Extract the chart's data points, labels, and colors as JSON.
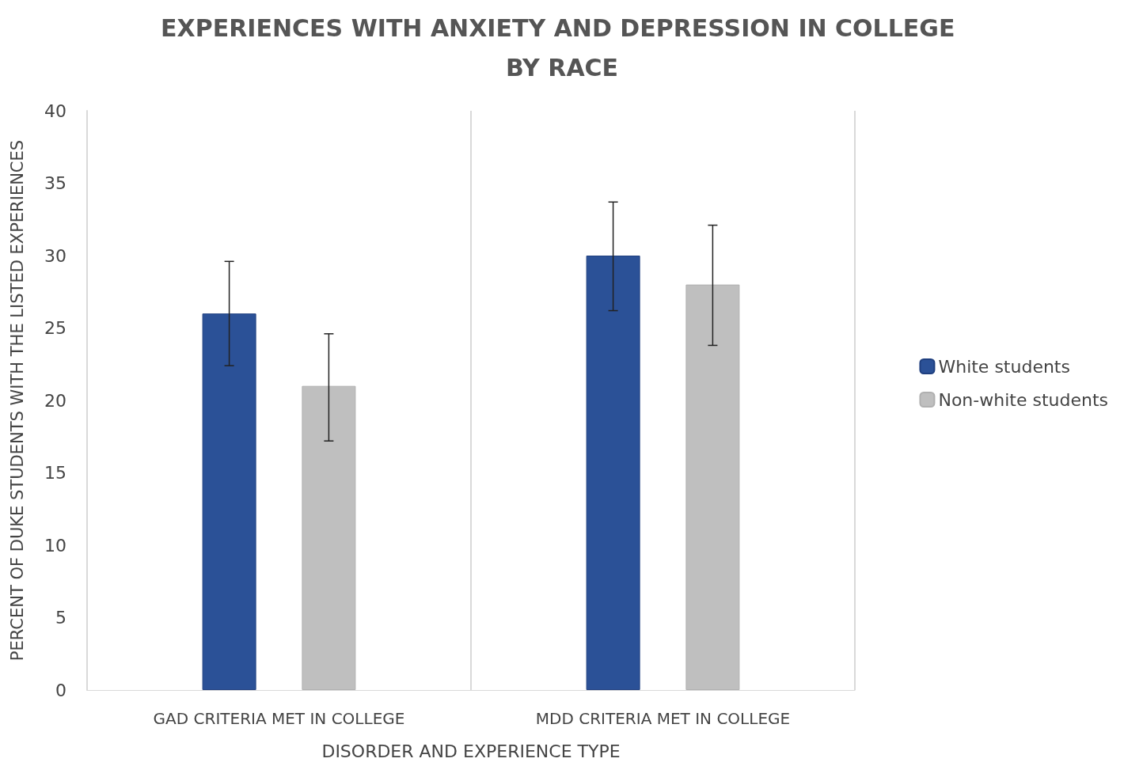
{
  "chart_data": {
    "type": "bar",
    "title": "EXPERIENCES WITH ANXIETY AND DEPRESSION IN COLLEGE BY RACE",
    "xlabel": "DISORDER AND EXPERIENCE TYPE",
    "ylabel": "PERCENT OF DUKE STUDENTS WITH THE LISTED EXPERIENCES",
    "categories": [
      "GAD CRITERIA MET IN COLLEGE",
      "MDD CRITERIA MET IN COLLEGE"
    ],
    "series": [
      {
        "name": "White students",
        "color": "#2b5197",
        "values": [
          26,
          30
        ],
        "errors": [
          [
            22.4,
            29.6
          ],
          [
            26.2,
            33.7
          ]
        ]
      },
      {
        "name": "Non-white students",
        "color": "#bfbfbf",
        "values": [
          21,
          28
        ],
        "errors": [
          [
            17.2,
            24.6
          ],
          [
            23.8,
            32.1
          ]
        ]
      }
    ],
    "ylim": [
      0,
      40
    ],
    "yticks": [
      0,
      5,
      10,
      15,
      20,
      25,
      30,
      35,
      40
    ],
    "grid": "x",
    "legend": "right"
  }
}
